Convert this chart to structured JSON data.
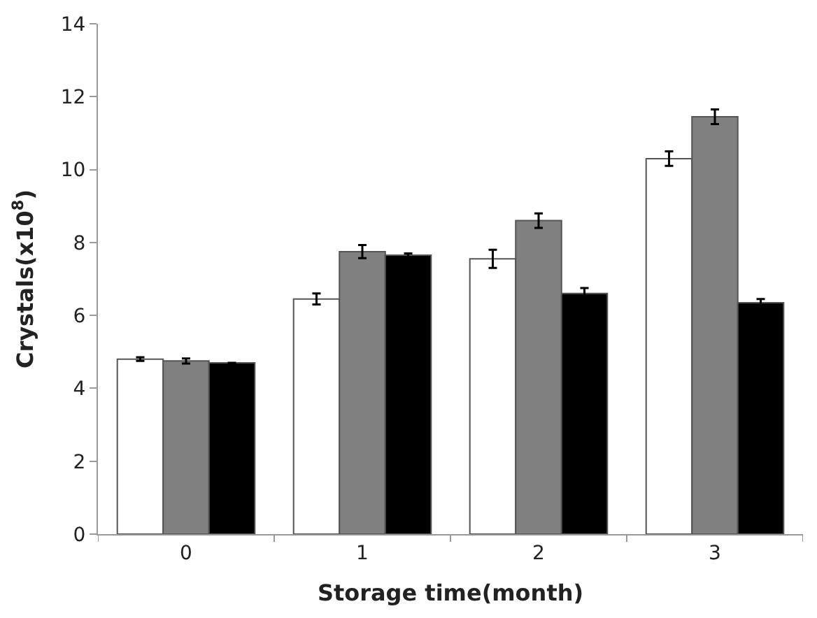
{
  "chart_data": {
    "type": "bar",
    "xlabel": "Storage time(month)",
    "ylabel": "Crystals(x10$^{8}$)",
    "categories": [
      "0",
      "1",
      "2",
      "3"
    ],
    "series": [
      {
        "color": "#ffffff",
        "values": [
          4.8,
          6.45,
          7.55,
          10.3
        ],
        "errors": [
          0.05,
          0.15,
          0.25,
          0.2
        ]
      },
      {
        "color": "#808080",
        "values": [
          4.75,
          7.75,
          8.6,
          11.45
        ],
        "errors": [
          0.07,
          0.18,
          0.2,
          0.2
        ]
      },
      {
        "color": "#000000",
        "values": [
          4.7,
          7.65,
          6.6,
          6.35
        ],
        "errors": [
          null,
          0.05,
          0.15,
          0.1
        ]
      }
    ],
    "ylim": [
      0,
      14
    ],
    "yticks": [
      0,
      2,
      4,
      6,
      8,
      10,
      12,
      14
    ]
  }
}
